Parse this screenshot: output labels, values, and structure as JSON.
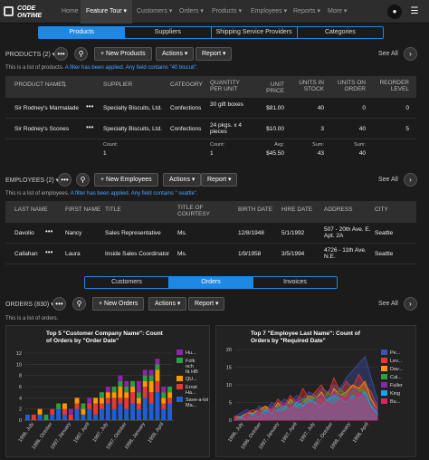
{
  "app": {
    "logo_line1": "CODE",
    "logo_line2": "ONTIME"
  },
  "nav": [
    {
      "label": "Home"
    },
    {
      "label": "Feature Tour ▾"
    },
    {
      "label": "Customers ▾"
    },
    {
      "label": "Orders ▾"
    },
    {
      "label": "Products ▾"
    },
    {
      "label": "Employees ▾"
    },
    {
      "label": "Reports ▾"
    },
    {
      "label": "More ▾"
    }
  ],
  "top_tabs": [
    "Products",
    "Suppliers",
    "Shipping Service Providers",
    "Categories"
  ],
  "products": {
    "title": "PRODUCTS (2) ▾",
    "new_btn": "New Products",
    "actions": "Actions ▾",
    "report": "Report ▾",
    "see_all": "See All",
    "hint_prefix": "This is a list of products.",
    "hint_filter": "A filter has been applied. Any field contains \"40 biscuit\".",
    "columns": [
      "PRODUCT NAME",
      "SUPPLIER",
      "CATEGORY",
      "QUANTITY PER UNIT",
      "UNIT PRICE",
      "UNITS IN STOCK",
      "UNITS ON ORDER",
      "REORDER LEVEL"
    ],
    "rows": [
      {
        "name": "Sir Rodney's Marmalade",
        "supplier": "Specialty Biscuits, Ltd.",
        "category": "Confections",
        "qty": "30 gift boxes",
        "price": "$81.00",
        "stock": "40",
        "order": "0",
        "reorder": "0"
      },
      {
        "name": "Sir Rodney's Scones",
        "supplier": "Specialty Biscuits, Ltd.",
        "category": "Confections",
        "qty": "24 pkgs. x 4 pieces",
        "price": "$10.00",
        "stock": "3",
        "order": "40",
        "reorder": "5"
      }
    ],
    "footer": {
      "count_label": "Count:",
      "count": "1",
      "count2": "1",
      "avg_label": "Avg:",
      "avg": "$45.50",
      "sum_label": "Sum:",
      "sum_stock": "43",
      "sum_order": "40"
    }
  },
  "employees": {
    "title": "EMPLOYEES (2) ▾",
    "new_btn": "New Employees",
    "actions": "Actions ▾",
    "report": "Report ▾",
    "see_all": "See All",
    "hint_prefix": "This is a list of employees.",
    "hint_filter": "A filter has been applied. Any field contains \" seattle\".",
    "columns": [
      "LAST NAME",
      "FIRST NAME",
      "TITLE",
      "TITLE OF COURTESY",
      "BIRTH DATE",
      "HIRE DATE",
      "ADDRESS",
      "CITY"
    ],
    "rows": [
      {
        "last": "Davolio",
        "first": "Nancy",
        "title": "Sales Representative",
        "courtesy": "Ms.",
        "birth": "12/8/1948",
        "hire": "5/1/1992",
        "address": "507 - 20th Ave. E. Apt. 2A",
        "city": "Seattle"
      },
      {
        "last": "Callahan",
        "first": "Laura",
        "title": "Inside Sales Coordinator",
        "courtesy": "Ms.",
        "birth": "1/9/1958",
        "hire": "3/5/1994",
        "address": "4726 - 11th Ave. N.E.",
        "city": "Seattle"
      }
    ]
  },
  "mid_tabs": [
    "Customers",
    "Orders",
    "Invoices"
  ],
  "orders": {
    "title": "ORDERS (830) ▾",
    "new_btn": "New Orders",
    "actions": "Actions ▾",
    "report": "Report ▾",
    "see_all": "See All",
    "hint_prefix": "This is a list of orders."
  },
  "chart_data": [
    {
      "type": "bar",
      "title": "Top 5 \"Customer Company Name\": Count of Orders by \"Order Date\"",
      "ylim": [
        0,
        12
      ],
      "yticks": [
        0,
        2,
        4,
        6,
        8,
        10,
        12
      ],
      "x_labels": [
        "1996, July",
        "1996, October",
        "1997, January",
        "1997, April",
        "1997, July",
        "1997, October",
        "1998, January",
        "1998, April"
      ],
      "legend": [
        {
          "name": "Hu...",
          "color": "#8e24aa"
        },
        {
          "name": "Folk och fä HB",
          "color": "#2e9e3e"
        },
        {
          "name": "QU...",
          "color": "#ff9800"
        },
        {
          "name": "Ernst Ha...",
          "color": "#e53935"
        },
        {
          "name": "Save-a-lot Ma...",
          "color": "#1e5fd6"
        }
      ],
      "series_colors": [
        "#1e5fd6",
        "#e53935",
        "#ff9800",
        "#2e9e3e",
        "#8e24aa"
      ],
      "values": [
        [
          1,
          0,
          0,
          0,
          0
        ],
        [
          0,
          1,
          0,
          0,
          0
        ],
        [
          1,
          0,
          1,
          0,
          0
        ],
        [
          0,
          0,
          0,
          1,
          0
        ],
        [
          1,
          1,
          0,
          0,
          0
        ],
        [
          2,
          0,
          0,
          1,
          0
        ],
        [
          1,
          1,
          1,
          0,
          0
        ],
        [
          0,
          1,
          0,
          0,
          1
        ],
        [
          2,
          1,
          1,
          0,
          0
        ],
        [
          1,
          0,
          1,
          1,
          0
        ],
        [
          2,
          1,
          0,
          0,
          1
        ],
        [
          1,
          2,
          1,
          0,
          0
        ],
        [
          2,
          1,
          1,
          1,
          0
        ],
        [
          3,
          1,
          1,
          0,
          1
        ],
        [
          2,
          2,
          1,
          1,
          0
        ],
        [
          3,
          1,
          2,
          1,
          1
        ],
        [
          2,
          2,
          1,
          1,
          1
        ],
        [
          3,
          2,
          1,
          1,
          0
        ],
        [
          2,
          1,
          1,
          1,
          2
        ],
        [
          4,
          2,
          1,
          1,
          1
        ],
        [
          3,
          2,
          2,
          1,
          1
        ],
        [
          5,
          2,
          2,
          1,
          1
        ],
        [
          2,
          1,
          1,
          1,
          1
        ],
        [
          3,
          1,
          1,
          1,
          0
        ]
      ]
    },
    {
      "type": "area",
      "title": "Top 7 \"Employee Last Name\": Count of Orders by \"Required Date\"",
      "ylim": [
        0,
        20
      ],
      "yticks": [
        0,
        5,
        10,
        15,
        20
      ],
      "x_labels": [
        "1996, July",
        "1996, October",
        "1997, January",
        "1997, April",
        "1997, July",
        "1997, October",
        "1998, January",
        "1998, April"
      ],
      "legend": [
        {
          "name": "Pe...",
          "color": "#3f51b5"
        },
        {
          "name": "Lev...",
          "color": "#e53935"
        },
        {
          "name": "Dav...",
          "color": "#ff9800"
        },
        {
          "name": "Cal...",
          "color": "#2e9e3e"
        },
        {
          "name": "Fuller",
          "color": "#8e24aa"
        },
        {
          "name": "King",
          "color": "#03a9f4"
        },
        {
          "name": "Bu...",
          "color": "#e91e63"
        }
      ],
      "series": [
        {
          "name": "Pe...",
          "values": [
            1,
            2,
            3,
            2,
            4,
            3,
            5,
            4,
            6,
            5,
            7,
            6,
            8,
            7,
            9,
            8,
            10,
            9,
            12,
            14,
            16,
            18,
            12,
            6
          ]
        },
        {
          "name": "Lev...",
          "values": [
            0,
            1,
            2,
            3,
            2,
            4,
            3,
            6,
            4,
            7,
            5,
            9,
            6,
            8,
            10,
            7,
            12,
            8,
            11,
            9,
            13,
            10,
            8,
            4
          ]
        },
        {
          "name": "Dav...",
          "values": [
            1,
            1,
            2,
            2,
            3,
            4,
            2,
            5,
            3,
            6,
            4,
            5,
            7,
            6,
            8,
            5,
            9,
            7,
            8,
            10,
            9,
            11,
            6,
            3
          ]
        },
        {
          "name": "Cal...",
          "values": [
            0,
            1,
            1,
            2,
            2,
            3,
            3,
            4,
            4,
            5,
            5,
            6,
            6,
            7,
            5,
            8,
            6,
            9,
            7,
            8,
            9,
            8,
            5,
            2
          ]
        },
        {
          "name": "Fuller",
          "values": [
            1,
            0,
            2,
            1,
            3,
            2,
            4,
            3,
            5,
            4,
            6,
            5,
            4,
            6,
            7,
            6,
            8,
            7,
            6,
            9,
            8,
            7,
            5,
            3
          ]
        },
        {
          "name": "King",
          "values": [
            0,
            1,
            0,
            2,
            1,
            3,
            2,
            3,
            4,
            3,
            5,
            4,
            6,
            5,
            4,
            6,
            7,
            6,
            5,
            7,
            6,
            8,
            4,
            2
          ]
        },
        {
          "name": "Bu...",
          "values": [
            1,
            0,
            1,
            1,
            2,
            1,
            3,
            2,
            2,
            4,
            3,
            3,
            5,
            4,
            6,
            5,
            4,
            6,
            7,
            5,
            8,
            6,
            3,
            1
          ]
        }
      ]
    }
  ]
}
